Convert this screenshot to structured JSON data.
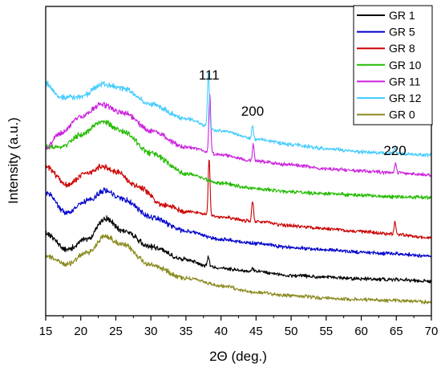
{
  "chart_data": {
    "type": "line",
    "xlabel": "2Θ (deg.)",
    "ylabel": "Intensity (a.u.)",
    "xlim": [
      15,
      70
    ],
    "xticks": [
      15,
      20,
      25,
      30,
      35,
      40,
      45,
      50,
      55,
      60,
      65,
      70
    ],
    "y_tick_labels_shown": false,
    "grid": false,
    "legend_position": "top-right",
    "y_units": "arbitrary, vertically offset stacked traces",
    "series": [
      {
        "name": "GR 1",
        "color": "#000000",
        "points": [
          [
            15,
            282
          ],
          [
            18,
            303
          ],
          [
            21,
            289
          ],
          [
            23.5,
            264
          ],
          [
            26,
            279
          ],
          [
            30,
            299
          ],
          [
            35,
            315
          ],
          [
            38.2,
            323
          ],
          [
            40,
            326
          ],
          [
            45,
            330
          ],
          [
            50,
            335
          ],
          [
            55,
            337
          ],
          [
            60,
            339
          ],
          [
            65,
            340
          ],
          [
            70,
            342
          ]
        ],
        "peaks": [
          [
            38.2,
            12
          ],
          [
            44.5,
            4
          ]
        ]
      },
      {
        "name": "GR 5",
        "color": "#0000cc",
        "points": [
          [
            15,
            232
          ],
          [
            18,
            257
          ],
          [
            21,
            242
          ],
          [
            23.5,
            229
          ],
          [
            26,
            240
          ],
          [
            30,
            262
          ],
          [
            35,
            280
          ],
          [
            40,
            290
          ],
          [
            45,
            295
          ],
          [
            50,
            300
          ],
          [
            55,
            303
          ],
          [
            60,
            306
          ],
          [
            65,
            308
          ],
          [
            70,
            311
          ]
        ],
        "peaks": []
      },
      {
        "name": "GR 8",
        "color": "#cc0000",
        "points": [
          [
            15,
            200
          ],
          [
            18,
            222
          ],
          [
            21,
            207
          ],
          [
            23,
            199
          ],
          [
            25,
            205
          ],
          [
            28,
            224
          ],
          [
            32,
            248
          ],
          [
            35,
            255
          ],
          [
            40,
            262
          ],
          [
            45,
            268
          ],
          [
            50,
            273
          ],
          [
            55,
            277
          ],
          [
            60,
            280
          ],
          [
            65,
            284
          ],
          [
            70,
            288
          ]
        ],
        "peaks": [
          [
            38.3,
            70
          ],
          [
            44.5,
            26
          ],
          [
            64.8,
            16
          ]
        ]
      },
      {
        "name": "GR 10",
        "color": "#22bb00",
        "points": [
          [
            15,
            175
          ],
          [
            17,
            175
          ],
          [
            20,
            160
          ],
          [
            23,
            143
          ],
          [
            26,
            155
          ],
          [
            30,
            183
          ],
          [
            35,
            208
          ],
          [
            40,
            220
          ],
          [
            45,
            227
          ],
          [
            50,
            231
          ],
          [
            55,
            233
          ],
          [
            60,
            235
          ],
          [
            65,
            237
          ],
          [
            70,
            238
          ]
        ],
        "peaks": []
      },
      {
        "name": "GR 11",
        "color": "#cc22dd",
        "points": [
          [
            15,
            178
          ],
          [
            17,
            158
          ],
          [
            20,
            137
          ],
          [
            23,
            122
          ],
          [
            26,
            132
          ],
          [
            30,
            155
          ],
          [
            35,
            175
          ],
          [
            40,
            185
          ],
          [
            45,
            193
          ],
          [
            50,
            197
          ],
          [
            55,
            202
          ],
          [
            60,
            205
          ],
          [
            65,
            207
          ],
          [
            70,
            210
          ]
        ],
        "peaks": [
          [
            38.4,
            75
          ],
          [
            44.6,
            22
          ],
          [
            64.9,
            12
          ]
        ]
      },
      {
        "name": "GR 12",
        "color": "#44ccff",
        "points": [
          [
            15,
            95
          ],
          [
            17,
            113
          ],
          [
            20,
            113
          ],
          [
            23,
            97
          ],
          [
            26,
            102
          ],
          [
            30,
            122
          ],
          [
            35,
            140
          ],
          [
            40,
            155
          ],
          [
            45,
            165
          ],
          [
            50,
            172
          ],
          [
            55,
            177
          ],
          [
            60,
            181
          ],
          [
            65,
            183
          ],
          [
            70,
            185
          ]
        ],
        "peaks": [
          [
            38.2,
            70
          ],
          [
            44.5,
            16
          ],
          [
            64.8,
            8
          ]
        ]
      },
      {
        "name": "GR 0",
        "color": "#8a8a1e",
        "points": [
          [
            15,
            310
          ],
          [
            18,
            321
          ],
          [
            21,
            306
          ],
          [
            23.5,
            286
          ],
          [
            26,
            297
          ],
          [
            30,
            322
          ],
          [
            35,
            338
          ],
          [
            40,
            348
          ],
          [
            45,
            356
          ],
          [
            50,
            360
          ],
          [
            55,
            363
          ],
          [
            60,
            365
          ],
          [
            65,
            366
          ],
          [
            70,
            368
          ]
        ],
        "peaks": []
      }
    ],
    "annotations": [
      {
        "text": "111",
        "x": 38.3
      },
      {
        "text": "200",
        "x": 44.5
      },
      {
        "text": "220",
        "x": 64.8
      }
    ]
  }
}
